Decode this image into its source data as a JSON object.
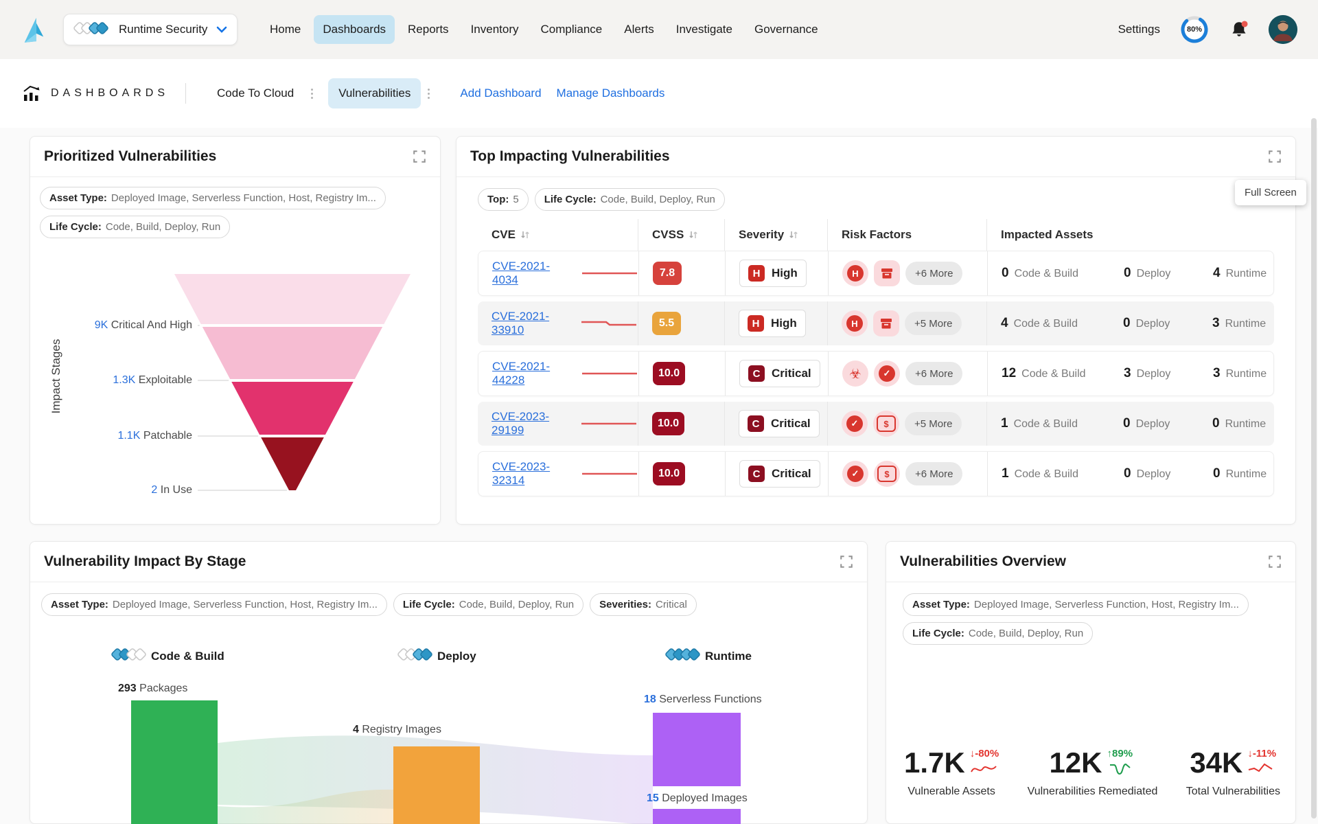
{
  "nav": {
    "product_selector": {
      "label": "Runtime Security"
    },
    "items": [
      {
        "label": "Home"
      },
      {
        "label": "Dashboards",
        "active": true
      },
      {
        "label": "Reports"
      },
      {
        "label": "Inventory"
      },
      {
        "label": "Compliance"
      },
      {
        "label": "Alerts"
      },
      {
        "label": "Investigate"
      },
      {
        "label": "Governance"
      }
    ],
    "settings": "Settings",
    "progress": "80%"
  },
  "toolbar": {
    "section": "DASHBOARDS",
    "tab_code_to_cloud": "Code To Cloud",
    "tab_vulnerabilities": "Vulnerabilities",
    "add_dashboard": "Add Dashboard",
    "manage_dashboards": "Manage Dashboards"
  },
  "tooltip": {
    "full_screen": "Full Screen"
  },
  "icons": {
    "high_glyph": "H",
    "biohazard_glyph": "☣",
    "check_glyph": "✓",
    "money_glyph": "$"
  },
  "prioritized": {
    "title": "Prioritized Vulnerabilities",
    "filters": [
      {
        "label": "Asset Type:",
        "value": "Deployed Image, Serverless Function, Host, Registry Im..."
      },
      {
        "label": "Life Cycle:",
        "value": "Code, Build, Deploy, Run"
      }
    ],
    "axis_label": "Impact Stages",
    "funnel": {
      "type": "funnel",
      "stages": [
        {
          "value": "9K",
          "label": "Critical And High",
          "color": "#fadde9"
        },
        {
          "value": "1.3K",
          "label": "Exploitable",
          "color": "#f6bcd2"
        },
        {
          "value": "1.1K",
          "label": "Patchable",
          "color": "#e2326d"
        },
        {
          "value": "2",
          "label": "In Use",
          "color": "#97121f"
        }
      ]
    }
  },
  "top_impacting": {
    "title": "Top Impacting Vulnerabilities",
    "filters": [
      {
        "label": "Top:",
        "value": "5"
      },
      {
        "label": "Life Cycle:",
        "value": "Code, Build, Deploy, Run"
      }
    ],
    "columns": [
      {
        "label": "CVE"
      },
      {
        "label": "CVSS"
      },
      {
        "label": "Severity"
      },
      {
        "label": "Risk Factors"
      },
      {
        "label": "Impacted Assets"
      }
    ],
    "rows": [
      {
        "cve": "CVE-2021-4034",
        "cvss": "7.8",
        "severity": {
          "letter": "H",
          "label": "High"
        },
        "risk": {
          "icons": [
            "high",
            "package"
          ],
          "more": "+6 More"
        },
        "assets": [
          {
            "count": "0",
            "label": "Code & Build"
          },
          {
            "count": "0",
            "label": "Deploy"
          },
          {
            "count": "4",
            "label": "Runtime"
          }
        ]
      },
      {
        "cve": "CVE-2021-33910",
        "cvss": "5.5",
        "severity": {
          "letter": "H",
          "label": "High"
        },
        "risk": {
          "icons": [
            "high",
            "package"
          ],
          "more": "+5 More"
        },
        "assets": [
          {
            "count": "4",
            "label": "Code & Build"
          },
          {
            "count": "0",
            "label": "Deploy"
          },
          {
            "count": "3",
            "label": "Runtime"
          }
        ]
      },
      {
        "cve": "CVE-2021-44228",
        "cvss": "10.0",
        "severity": {
          "letter": "C",
          "label": "Critical"
        },
        "risk": {
          "icons": [
            "biohazard",
            "check"
          ],
          "more": "+6 More"
        },
        "assets": [
          {
            "count": "12",
            "label": "Code & Build"
          },
          {
            "count": "3",
            "label": "Deploy"
          },
          {
            "count": "3",
            "label": "Runtime"
          }
        ]
      },
      {
        "cve": "CVE-2023-29199",
        "cvss": "10.0",
        "severity": {
          "letter": "C",
          "label": "Critical"
        },
        "risk": {
          "icons": [
            "check",
            "money"
          ],
          "more": "+5 More"
        },
        "assets": [
          {
            "count": "1",
            "label": "Code & Build"
          },
          {
            "count": "0",
            "label": "Deploy"
          },
          {
            "count": "0",
            "label": "Runtime"
          }
        ]
      },
      {
        "cve": "CVE-2023-32314",
        "cvss": "10.0",
        "severity": {
          "letter": "C",
          "label": "Critical"
        },
        "risk": {
          "icons": [
            "check",
            "money"
          ],
          "more": "+6 More"
        },
        "assets": [
          {
            "count": "1",
            "label": "Code & Build"
          },
          {
            "count": "0",
            "label": "Deploy"
          },
          {
            "count": "0",
            "label": "Runtime"
          }
        ]
      }
    ]
  },
  "impact_by_stage": {
    "title": "Vulnerability Impact By Stage",
    "filters": [
      {
        "label": "Asset Type:",
        "value": "Deployed Image, Serverless Function, Host, Registry Im..."
      },
      {
        "label": "Life Cycle:",
        "value": "Code, Build, Deploy, Run"
      },
      {
        "label": "Severities:",
        "value": "Critical"
      }
    ],
    "stages": [
      {
        "label": "Code & Build"
      },
      {
        "label": "Deploy"
      },
      {
        "label": "Runtime"
      }
    ],
    "sankey": {
      "type": "sankey",
      "nodes": [
        {
          "value": "293",
          "label": "Packages",
          "color": "#2fb155",
          "stage": "Code & Build"
        },
        {
          "value": "4",
          "label": "Registry Images",
          "color": "#f2a33c",
          "stage": "Deploy"
        },
        {
          "value": "18",
          "label": "Serverless Functions",
          "color": "#ad61f5",
          "stage": "Runtime"
        },
        {
          "value": "15",
          "label": "Deployed Images",
          "color": "#ad61f5",
          "stage": "Runtime"
        }
      ]
    }
  },
  "overview": {
    "title": "Vulnerabilities Overview",
    "filters": [
      {
        "label": "Asset Type:",
        "value": "Deployed Image, Serverless Function, Host, Registry Im..."
      },
      {
        "label": "Life Cycle:",
        "value": "Code, Build, Deploy, Run"
      }
    ],
    "stats": [
      {
        "value": "1.7K",
        "delta": "-80%",
        "direction": "down",
        "color": "#e3342f",
        "label": "Vulnerable Assets"
      },
      {
        "value": "12K",
        "delta": "89%",
        "direction": "up",
        "color": "#1f9d4d",
        "label": "Vulnerabilities Remediated"
      },
      {
        "value": "34K",
        "delta": "-11%",
        "direction": "down",
        "color": "#e3342f",
        "label": "Total Vulnerabilities"
      }
    ]
  }
}
